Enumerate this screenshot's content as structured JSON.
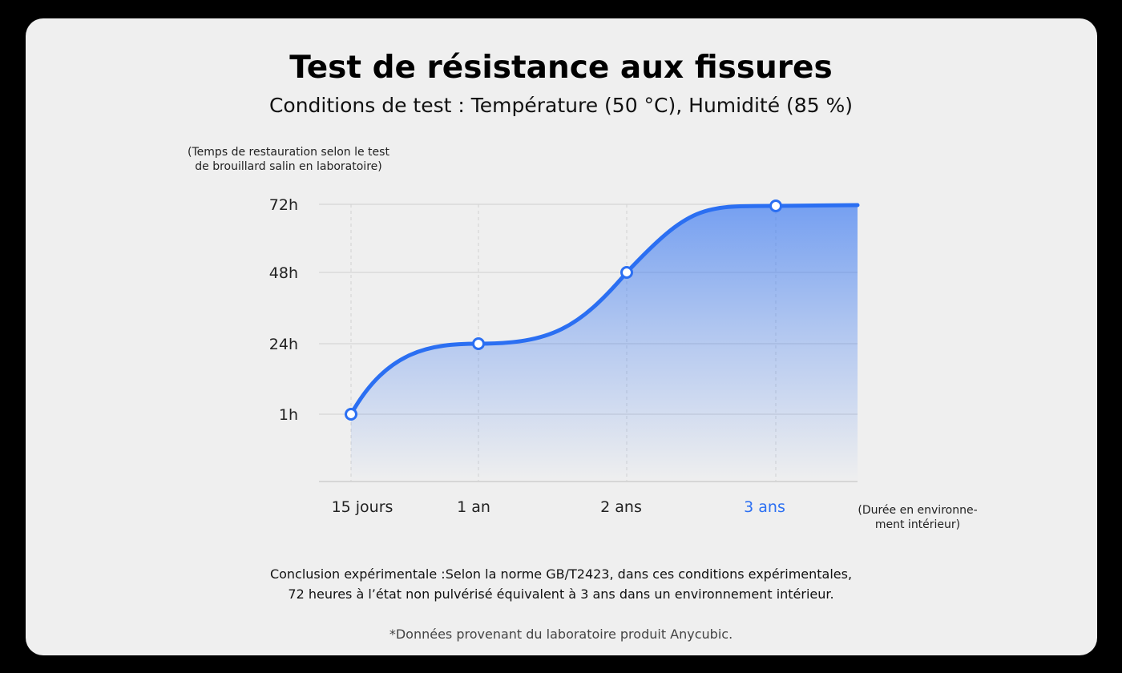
{
  "chart_data": {
    "type": "area",
    "title": "Test de résistance aux fissures",
    "subtitle": "Conditions de test : Température (50 °C), Humidité (85 %)",
    "ylabel": "(Temps de restauration selon le test de brouillard salin en laboratoire)",
    "xlabel": "(Durée en environne-ment intérieur)",
    "categories": [
      "15 jours",
      "1 an",
      "2 ans",
      "3 ans"
    ],
    "y_ticks": [
      "1h",
      "24h",
      "48h",
      "72h"
    ],
    "series": [
      {
        "values": [
          "1h",
          "24h",
          "48h",
          "72h"
        ]
      }
    ],
    "highlighted_category": "3 ans",
    "grid": true,
    "colors": {
      "line": "#2b6ff2",
      "highlight_tick": "#2b6ff2",
      "fill_top": "#2b6ff2"
    }
  },
  "text": {
    "ylabel_line1": "(Temps de restauration selon le test",
    "ylabel_line2": "de brouillard salin en laboratoire)",
    "xlabel_line1": "(Durée en environne-",
    "xlabel_line2": "ment intérieur)",
    "conclusion_line1": "Conclusion expérimentale :Selon la norme GB/T2423, dans ces conditions expérimentales,",
    "conclusion_line2": "72 heures à l’état non pulvérisé équivalent à 3 ans dans un environnement intérieur.",
    "source": "*Données provenant du laboratoire produit Anycubic."
  }
}
